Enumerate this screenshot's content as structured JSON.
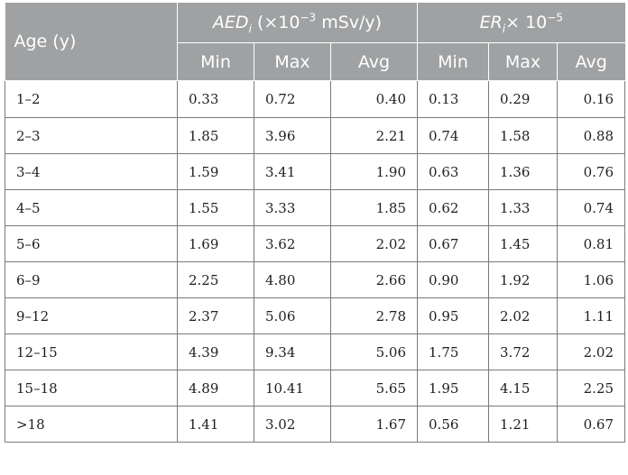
{
  "header": {
    "age_label": "Age (y)",
    "aed_group": {
      "symbol": "AED",
      "sub": "i",
      "prefix": " (×10",
      "exp": "−3",
      "unit": " mSv/y)"
    },
    "er_group": {
      "symbol": "ER",
      "sub": "i",
      "prefix": "× 10",
      "exp": "−5"
    },
    "sub_columns": [
      "Min",
      "Max",
      "Avg",
      "Min",
      "Max",
      "Avg"
    ]
  },
  "rows": [
    {
      "age": "1–2",
      "vals": [
        "0.33",
        "0.72",
        "0.40",
        "0.13",
        "0.29",
        "0.16"
      ]
    },
    {
      "age": "2–3",
      "vals": [
        "1.85",
        "3.96",
        "2.21",
        "0.74",
        "1.58",
        "0.88"
      ]
    },
    {
      "age": "3–4",
      "vals": [
        "1.59",
        "3.41",
        "1.90",
        "0.63",
        "1.36",
        "0.76"
      ]
    },
    {
      "age": "4–5",
      "vals": [
        "1.55",
        "3.33",
        "1.85",
        "0.62",
        "1.33",
        "0.74"
      ]
    },
    {
      "age": "5–6",
      "vals": [
        "1.69",
        "3.62",
        "2.02",
        "0.67",
        "1.45",
        "0.81"
      ]
    },
    {
      "age": "6–9",
      "vals": [
        "2.25",
        "4.80",
        "2.66",
        "0.90",
        "1.92",
        "1.06"
      ]
    },
    {
      "age": "9–12",
      "vals": [
        "2.37",
        "5.06",
        "2.78",
        "0.95",
        "2.02",
        "1.11"
      ]
    },
    {
      "age": "12–15",
      "vals": [
        "4.39",
        "9.34",
        "5.06",
        "1.75",
        "3.72",
        "2.02"
      ]
    },
    {
      "age": "15–18",
      "vals": [
        "4.89",
        "10.41",
        "5.65",
        "1.95",
        "4.15",
        "2.25"
      ]
    },
    {
      "age": ">18",
      "vals": [
        "1.41",
        "3.02",
        "1.67",
        "0.56",
        "1.21",
        "0.67"
      ]
    }
  ]
}
